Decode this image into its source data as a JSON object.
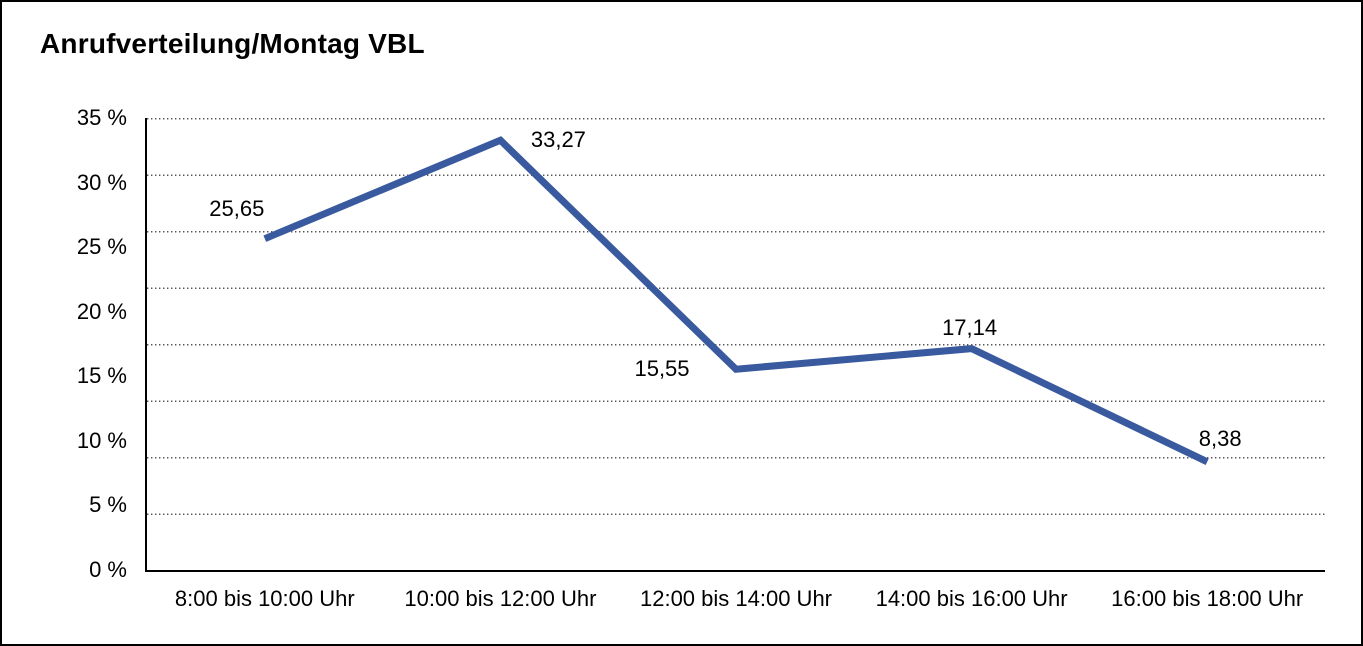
{
  "window": {
    "background_color": "#ffffff",
    "border_color": "#000000"
  },
  "header": {
    "title": "Anrufverteilung/Montag VBL"
  },
  "chart_data": {
    "type": "line",
    "title": "Anrufverteilung/Montag VBL",
    "categories": [
      "8:00 bis 10:00 Uhr",
      "10:00 bis 12:00 Uhr",
      "12:00 bis 14:00 Uhr",
      "14:00 bis 16:00 Uhr",
      "16:00 bis 18:00 Uhr"
    ],
    "values": [
      25.65,
      33.27,
      15.55,
      17.14,
      8.38
    ],
    "value_labels": [
      "25,65",
      "33,27",
      "15,55",
      "17,14",
      "8,38"
    ],
    "y_ticks": [
      {
        "value": 35,
        "label": "35 %"
      },
      {
        "value": 30,
        "label": "30 %"
      },
      {
        "value": 25,
        "label": "25 %"
      },
      {
        "value": 20,
        "label": "20 %"
      },
      {
        "value": 15,
        "label": "15 %"
      },
      {
        "value": 10,
        "label": "10 %"
      },
      {
        "value": 5,
        "label": "5 %"
      },
      {
        "value": 0,
        "label": "0 %"
      }
    ],
    "ylim": [
      0,
      35
    ],
    "xlabel": "",
    "ylabel": "",
    "legend": "none",
    "grid": "horizontal dotted",
    "grid_divisions": 8,
    "line_color": "#3A5A9F",
    "line_width": 7,
    "text_color": "#000000",
    "grid_color": "#555555"
  }
}
